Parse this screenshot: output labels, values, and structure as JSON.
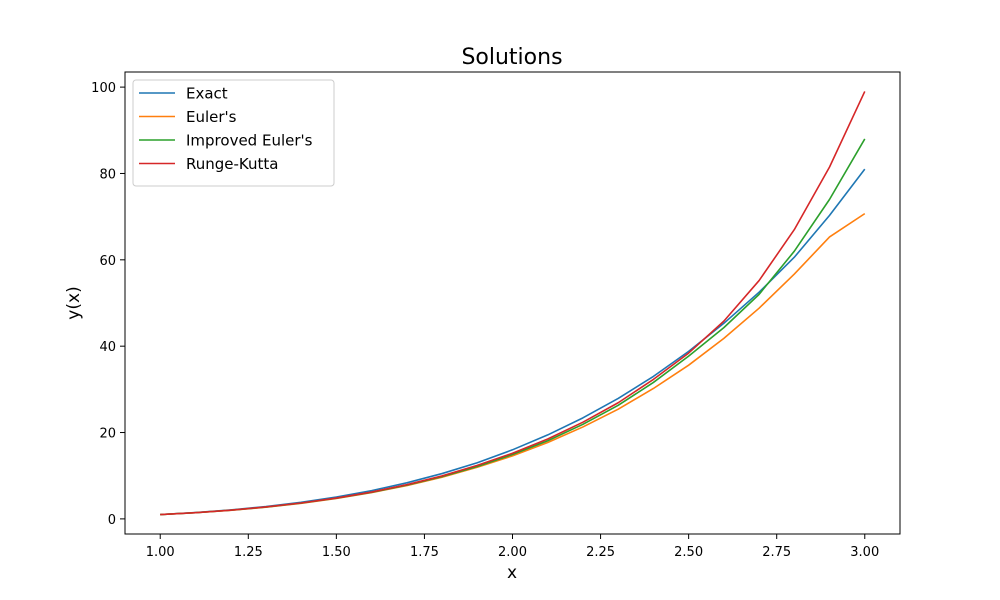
{
  "chart_data": {
    "type": "line",
    "title": "Solutions",
    "xlabel": "x",
    "ylabel": "y(x)",
    "xlim": [
      0.9,
      3.1
    ],
    "ylim": [
      -3.5,
      103.5
    ],
    "xticks": [
      1.0,
      1.25,
      1.5,
      1.75,
      2.0,
      2.25,
      2.5,
      2.75,
      3.0
    ],
    "xtick_labels": [
      "1.00",
      "1.25",
      "1.50",
      "1.75",
      "2.00",
      "2.25",
      "2.50",
      "2.75",
      "3.00"
    ],
    "yticks": [
      0,
      20,
      40,
      60,
      80,
      100
    ],
    "ytick_labels": [
      "0",
      "20",
      "40",
      "60",
      "80",
      "100"
    ],
    "grid": false,
    "legend_position": "top-left",
    "x": [
      1.0,
      1.1,
      1.2,
      1.3,
      1.4,
      1.5,
      1.6,
      1.7,
      1.8,
      1.9,
      2.0,
      2.1,
      2.2,
      2.3,
      2.4,
      2.5,
      2.6,
      2.7,
      2.8,
      2.9,
      3.0
    ],
    "series": [
      {
        "name": "Exact",
        "color": "#1f77b4",
        "values": [
          1.0,
          1.46,
          2.07,
          2.86,
          3.84,
          5.06,
          6.55,
          8.35,
          10.5,
          13.0,
          16.0,
          19.45,
          23.4,
          27.9,
          33.0,
          38.8,
          45.3,
          52.5,
          60.6,
          70.3,
          81.0
        ]
      },
      {
        "name": "Euler's",
        "color": "#ff7f0e",
        "values": [
          1.0,
          1.42,
          1.98,
          2.7,
          3.6,
          4.72,
          6.08,
          7.72,
          9.66,
          11.95,
          14.6,
          17.7,
          21.3,
          25.4,
          30.2,
          35.6,
          41.8,
          48.8,
          56.7,
          65.3,
          70.7
        ]
      },
      {
        "name": "Improved Euler's",
        "color": "#2ca02c",
        "values": [
          1.0,
          1.44,
          2.01,
          2.74,
          3.65,
          4.78,
          6.16,
          7.82,
          9.8,
          12.15,
          14.9,
          18.1,
          21.9,
          26.3,
          31.6,
          37.7,
          44.3,
          52.0,
          62.0,
          74.0,
          88.0
        ]
      },
      {
        "name": "Runge-Kutta",
        "color": "#d62728",
        "values": [
          1.0,
          1.44,
          2.02,
          2.76,
          3.68,
          4.82,
          6.22,
          7.92,
          9.95,
          12.4,
          15.2,
          18.5,
          22.4,
          26.9,
          32.3,
          38.4,
          45.8,
          55.2,
          67.0,
          81.5,
          99.0
        ]
      }
    ]
  }
}
